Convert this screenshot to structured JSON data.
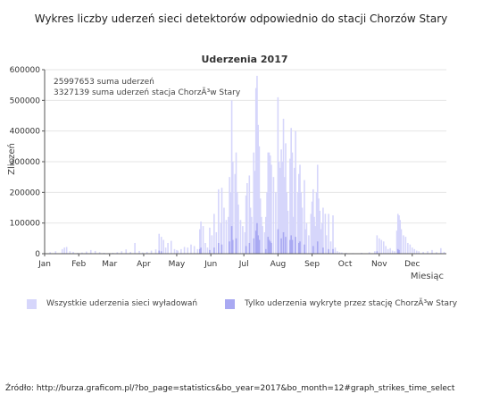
{
  "page": {
    "title": "Wykres liczby uderzeń sieci detektorów odpowiednio do stacji Chorzów Stary",
    "source": "Źródło: http://burza.graficom.pl/?bo_page=statistics&bo_year=2017&bo_month=12#graph_strikes_time_select"
  },
  "colors": {
    "all": "#d6d6fb",
    "station": "#a9a9f2",
    "axis": "#555555",
    "grid": "#e6e6e6"
  },
  "chart_data": {
    "type": "bar",
    "title": "Uderzenia 2017",
    "xlabel": "Miesiąc",
    "ylabel": "Zliczeń",
    "ylim": [
      0,
      600000
    ],
    "yticks": [
      0,
      100000,
      200000,
      300000,
      400000,
      500000,
      600000
    ],
    "ytick_labels": [
      "0",
      "100000",
      "200000",
      "300000",
      "400000",
      "500000",
      "600000"
    ],
    "xticks": [
      "Jan",
      "Feb",
      "Mar",
      "Apr",
      "May",
      "Jun",
      "Jul",
      "Aug",
      "Sep",
      "Oct",
      "Nov",
      "Dec"
    ],
    "annotations": [
      "25997653 suma uderzeń",
      "3327139 suma uderzeń stacja ChorzÃ³w Stary"
    ],
    "legend_position": "bottom",
    "series": [
      {
        "name": "Wszystkie uderzenia sieci wyładowań",
        "points": [
          [
            5,
            5000
          ],
          [
            10,
            8000
          ],
          [
            16,
            15000
          ],
          [
            18,
            20000
          ],
          [
            20,
            22000
          ],
          [
            23,
            8000
          ],
          [
            26,
            6000
          ],
          [
            30,
            3000
          ],
          [
            34,
            4000
          ],
          [
            38,
            7000
          ],
          [
            42,
            12000
          ],
          [
            46,
            9000
          ],
          [
            50,
            5000
          ],
          [
            54,
            3000
          ],
          [
            58,
            2000
          ],
          [
            62,
            3000
          ],
          [
            66,
            5000
          ],
          [
            70,
            8000
          ],
          [
            74,
            14000
          ],
          [
            78,
            6000
          ],
          [
            82,
            35000
          ],
          [
            86,
            9000
          ],
          [
            89,
            4000
          ],
          [
            93,
            6000
          ],
          [
            97,
            10000
          ],
          [
            101,
            14000
          ],
          [
            104,
            65000
          ],
          [
            106,
            55000
          ],
          [
            108,
            45000
          ],
          [
            110,
            20000
          ],
          [
            112,
            35000
          ],
          [
            115,
            42000
          ],
          [
            118,
            15000
          ],
          [
            120,
            12000
          ],
          [
            121,
            10000
          ],
          [
            124,
            15000
          ],
          [
            127,
            22000
          ],
          [
            130,
            20000
          ],
          [
            133,
            30000
          ],
          [
            136,
            25000
          ],
          [
            139,
            15000
          ],
          [
            141,
            80000
          ],
          [
            142,
            105000
          ],
          [
            144,
            90000
          ],
          [
            146,
            35000
          ],
          [
            148,
            20000
          ],
          [
            150,
            85000
          ],
          [
            152,
            60000
          ],
          [
            154,
            130000
          ],
          [
            156,
            70000
          ],
          [
            158,
            210000
          ],
          [
            160,
            100000
          ],
          [
            161,
            215000
          ],
          [
            163,
            150000
          ],
          [
            165,
            110000
          ],
          [
            167,
            120000
          ],
          [
            168,
            250000
          ],
          [
            169,
            200000
          ],
          [
            170,
            500000
          ],
          [
            171,
            300000
          ],
          [
            173,
            260000
          ],
          [
            174,
            330000
          ],
          [
            175,
            200000
          ],
          [
            176,
            160000
          ],
          [
            178,
            110000
          ],
          [
            180,
            90000
          ],
          [
            182,
            70000
          ],
          [
            183,
            190000
          ],
          [
            184,
            230000
          ],
          [
            186,
            255000
          ],
          [
            187,
            150000
          ],
          [
            188,
            120000
          ],
          [
            190,
            330000
          ],
          [
            191,
            270000
          ],
          [
            192,
            540000
          ],
          [
            193,
            580000
          ],
          [
            194,
            420000
          ],
          [
            195,
            350000
          ],
          [
            196,
            180000
          ],
          [
            197,
            120000
          ],
          [
            198,
            90000
          ],
          [
            200,
            70000
          ],
          [
            201,
            120000
          ],
          [
            202,
            200000
          ],
          [
            203,
            330000
          ],
          [
            204,
            330000
          ],
          [
            205,
            320000
          ],
          [
            206,
            290000
          ],
          [
            208,
            250000
          ],
          [
            210,
            200000
          ],
          [
            212,
            510000
          ],
          [
            213,
            300000
          ],
          [
            214,
            280000
          ],
          [
            215,
            340000
          ],
          [
            216,
            300000
          ],
          [
            217,
            440000
          ],
          [
            218,
            250000
          ],
          [
            219,
            360000
          ],
          [
            220,
            200000
          ],
          [
            221,
            140000
          ],
          [
            223,
            310000
          ],
          [
            224,
            410000
          ],
          [
            225,
            330000
          ],
          [
            226,
            120000
          ],
          [
            227,
            280000
          ],
          [
            228,
            400000
          ],
          [
            230,
            200000
          ],
          [
            231,
            260000
          ],
          [
            232,
            290000
          ],
          [
            233,
            200000
          ],
          [
            234,
            150000
          ],
          [
            236,
            240000
          ],
          [
            237,
            80000
          ],
          [
            238,
            100000
          ],
          [
            240,
            60000
          ],
          [
            242,
            130000
          ],
          [
            243,
            170000
          ],
          [
            244,
            210000
          ],
          [
            245,
            120000
          ],
          [
            246,
            90000
          ],
          [
            247,
            200000
          ],
          [
            248,
            290000
          ],
          [
            249,
            180000
          ],
          [
            250,
            140000
          ],
          [
            251,
            80000
          ],
          [
            252,
            100000
          ],
          [
            253,
            150000
          ],
          [
            255,
            130000
          ],
          [
            256,
            60000
          ],
          [
            258,
            130000
          ],
          [
            260,
            40000
          ],
          [
            262,
            125000
          ],
          [
            264,
            20000
          ],
          [
            266,
            8000
          ],
          [
            268,
            5000
          ],
          [
            270,
            4000
          ],
          [
            274,
            3000
          ],
          [
            280,
            2000
          ],
          [
            288,
            3000
          ],
          [
            295,
            5000
          ],
          [
            300,
            8000
          ],
          [
            302,
            60000
          ],
          [
            304,
            50000
          ],
          [
            306,
            45000
          ],
          [
            308,
            40000
          ],
          [
            310,
            25000
          ],
          [
            312,
            15000
          ],
          [
            314,
            18000
          ],
          [
            316,
            10000
          ],
          [
            318,
            8000
          ],
          [
            320,
            75000
          ],
          [
            321,
            130000
          ],
          [
            322,
            125000
          ],
          [
            323,
            110000
          ],
          [
            324,
            80000
          ],
          [
            326,
            60000
          ],
          [
            328,
            55000
          ],
          [
            330,
            35000
          ],
          [
            332,
            30000
          ],
          [
            334,
            20000
          ],
          [
            336,
            15000
          ],
          [
            338,
            10000
          ],
          [
            340,
            8000
          ],
          [
            344,
            6000
          ],
          [
            348,
            8000
          ],
          [
            352,
            12000
          ],
          [
            356,
            5000
          ],
          [
            360,
            18000
          ],
          [
            363,
            6000
          ]
        ]
      },
      {
        "name": "Tylko uderzenia wykryte przez stację ChorzÃ³w Stary",
        "points": [
          [
            104,
            10000
          ],
          [
            106,
            8000
          ],
          [
            141,
            15000
          ],
          [
            142,
            20000
          ],
          [
            150,
            12000
          ],
          [
            154,
            20000
          ],
          [
            158,
            35000
          ],
          [
            161,
            30000
          ],
          [
            168,
            40000
          ],
          [
            170,
            90000
          ],
          [
            171,
            45000
          ],
          [
            174,
            50000
          ],
          [
            183,
            25000
          ],
          [
            186,
            35000
          ],
          [
            190,
            50000
          ],
          [
            192,
            75000
          ],
          [
            193,
            100000
          ],
          [
            194,
            60000
          ],
          [
            195,
            45000
          ],
          [
            201,
            15000
          ],
          [
            203,
            55000
          ],
          [
            204,
            45000
          ],
          [
            205,
            40000
          ],
          [
            206,
            35000
          ],
          [
            212,
            80000
          ],
          [
            215,
            50000
          ],
          [
            217,
            70000
          ],
          [
            219,
            55000
          ],
          [
            223,
            45000
          ],
          [
            224,
            60000
          ],
          [
            225,
            45000
          ],
          [
            228,
            55000
          ],
          [
            231,
            35000
          ],
          [
            232,
            40000
          ],
          [
            236,
            30000
          ],
          [
            244,
            25000
          ],
          [
            248,
            40000
          ],
          [
            253,
            20000
          ],
          [
            258,
            15000
          ],
          [
            262,
            15000
          ],
          [
            302,
            8000
          ],
          [
            321,
            15000
          ],
          [
            322,
            12000
          ]
        ]
      }
    ]
  }
}
